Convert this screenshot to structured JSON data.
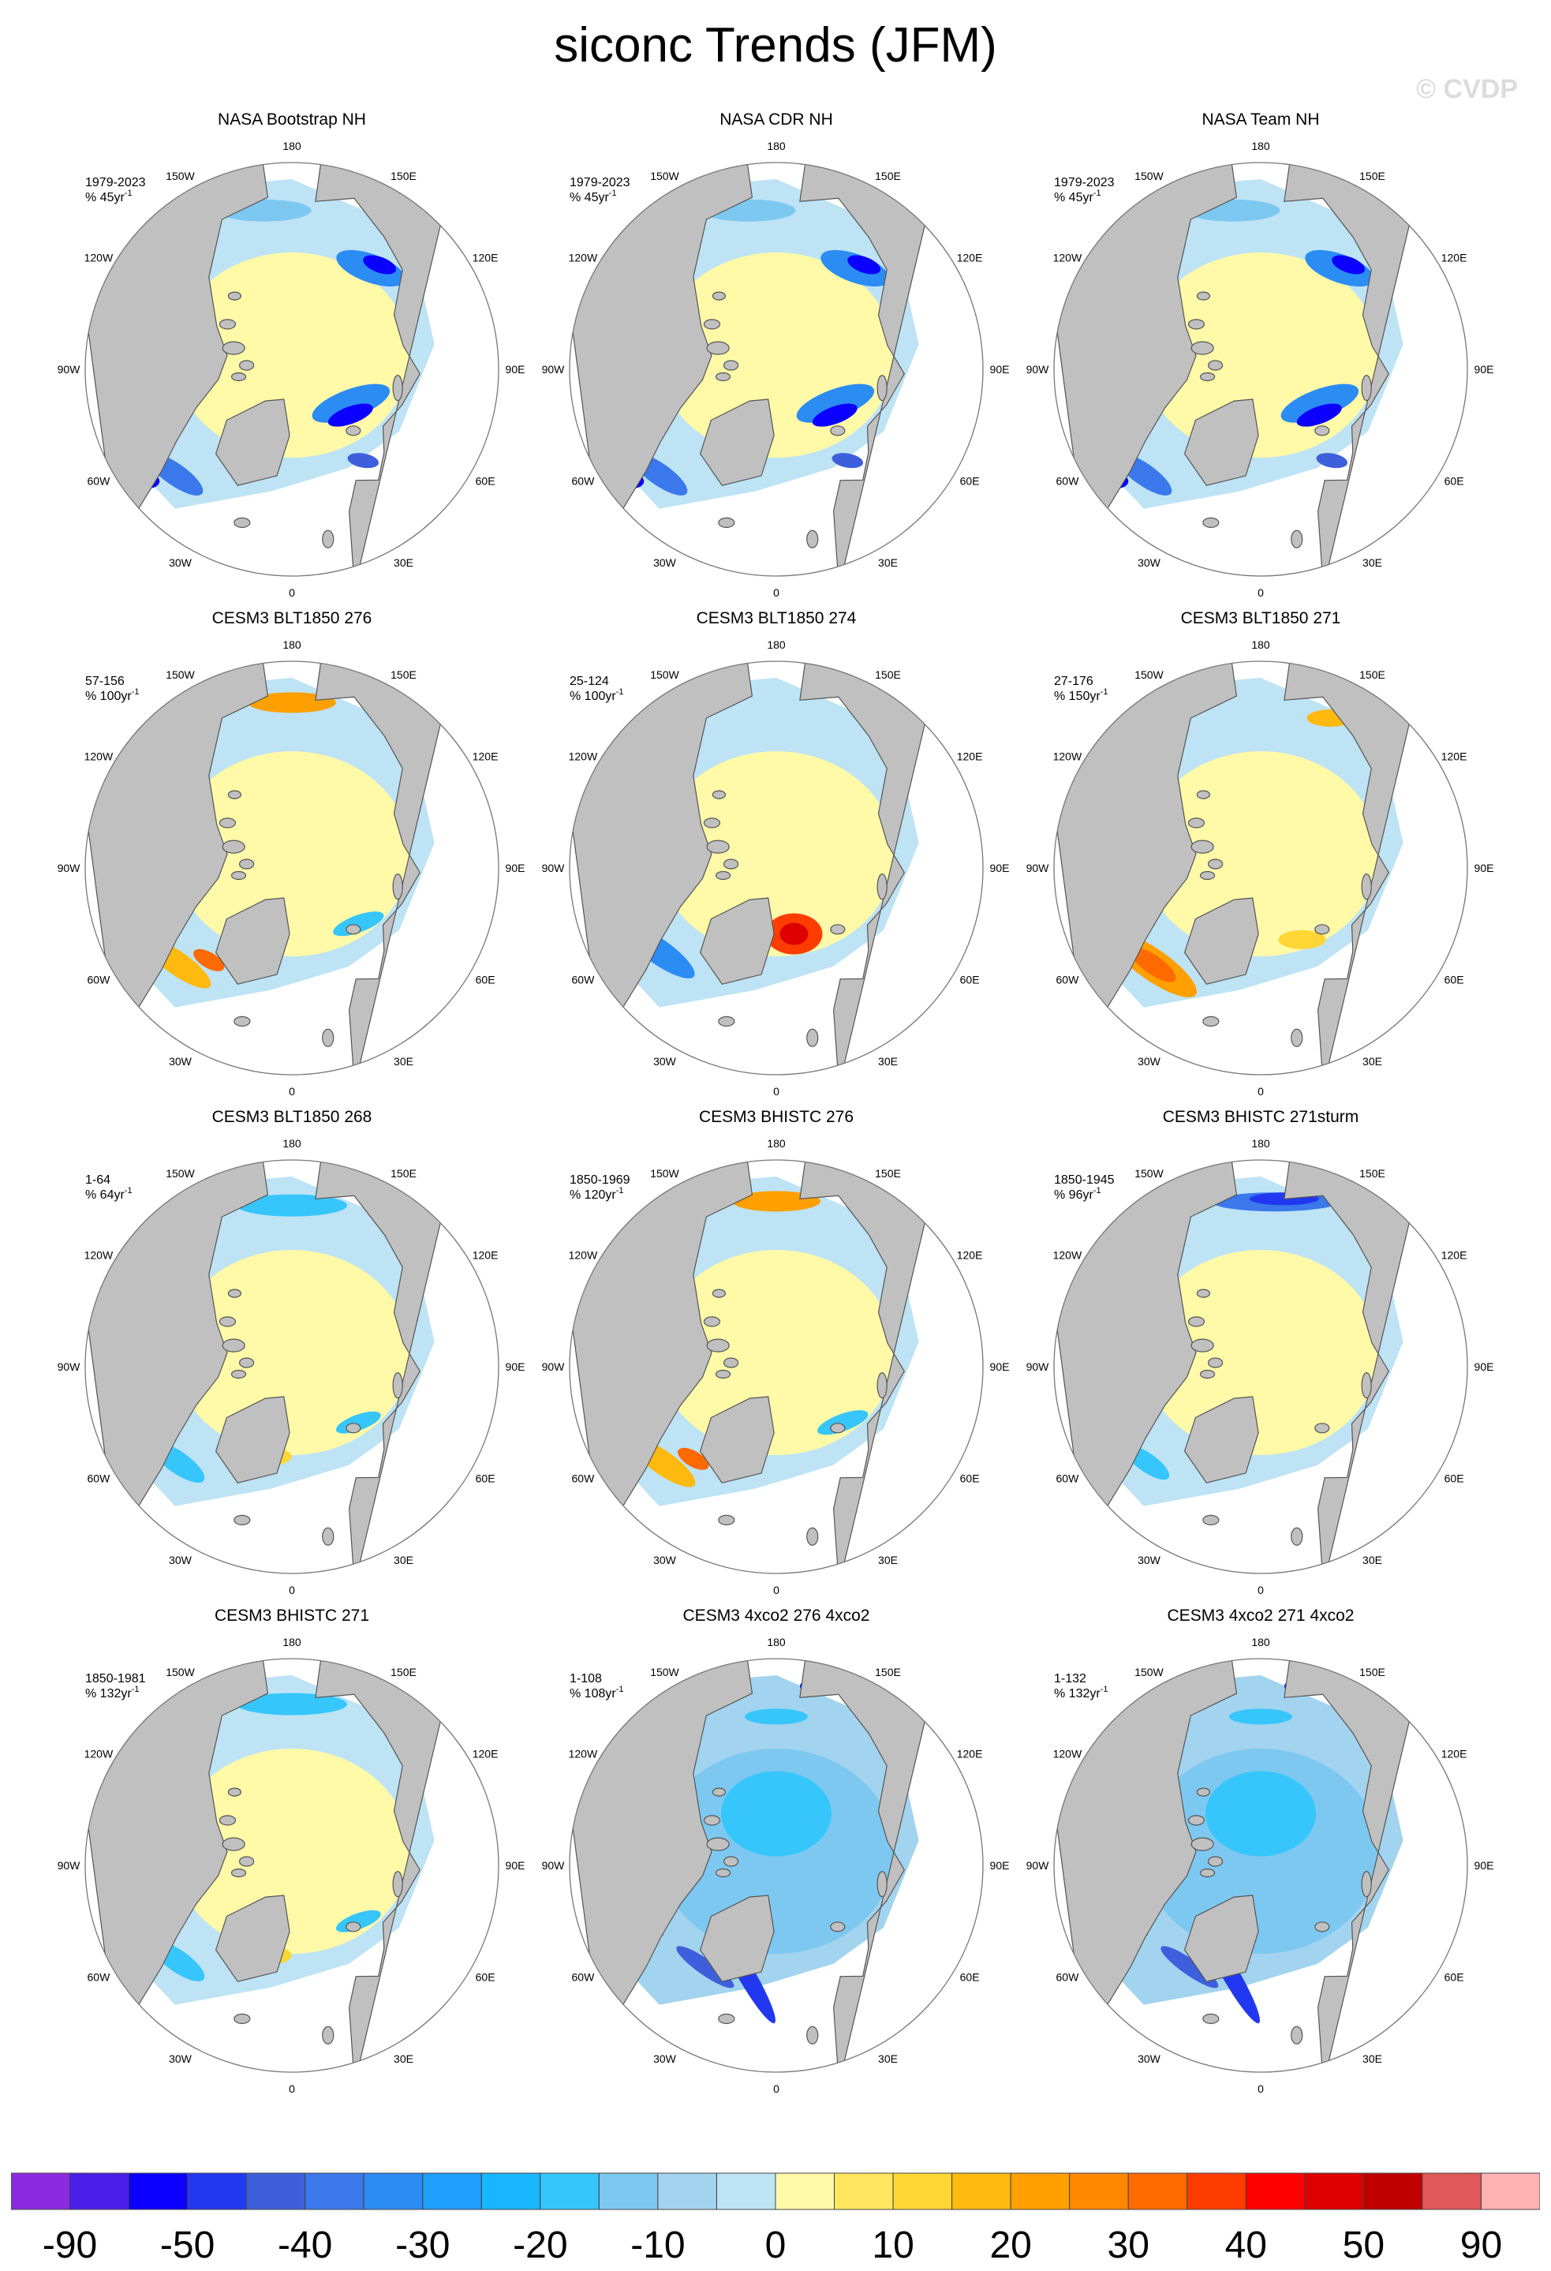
{
  "title": "siconc Trends (JFM)",
  "watermark": "© CVDP",
  "colors": {
    "land": "#c0c0c0",
    "ocean": "#ffffff",
    "coast": "#555555"
  },
  "lon_labels": [
    "180",
    "150E",
    "120E",
    "90E",
    "60E",
    "30E",
    "0",
    "30W",
    "60W",
    "90W",
    "120W",
    "150W"
  ],
  "panels": [
    {
      "title": "NASA Bootstrap NH",
      "period": "1979-2023",
      "trend": "% 45yr",
      "pattern": "obs"
    },
    {
      "title": "NASA CDR NH",
      "period": "1979-2023",
      "trend": "% 45yr",
      "pattern": "obs"
    },
    {
      "title": "NASA Team NH",
      "period": "1979-2023",
      "trend": "% 45yr",
      "pattern": "obs"
    },
    {
      "title": "CESM3 BLT1850 276",
      "period": "57-156",
      "trend": "% 100yr",
      "pattern": "mixed_warm"
    },
    {
      "title": "CESM3 BLT1850 274",
      "period": "25-124",
      "trend": "% 100yr",
      "pattern": "dipole"
    },
    {
      "title": "CESM3 BLT1850 271",
      "period": "27-176",
      "trend": "% 150yr",
      "pattern": "warm"
    },
    {
      "title": "CESM3 BLT1850 268",
      "period": "1-64",
      "trend": "% 64yr",
      "pattern": "mixed"
    },
    {
      "title": "CESM3 BHISTC 276",
      "period": "1850-1969",
      "trend": "% 120yr",
      "pattern": "mixed_warm"
    },
    {
      "title": "CESM3 BHISTC 271sturm",
      "period": "1850-1945",
      "trend": "% 96yr",
      "pattern": "mixed_cool"
    },
    {
      "title": "CESM3 BHISTC 271",
      "period": "1850-1981",
      "trend": "% 132yr",
      "pattern": "mixed"
    },
    {
      "title": "CESM3 4xco2 276 4xco2",
      "period": "1-108",
      "trend": "% 108yr",
      "pattern": "strong_loss"
    },
    {
      "title": "CESM3 4xco2 271 4xco2",
      "period": "1-132",
      "trend": "% 132yr",
      "pattern": "strong_loss"
    }
  ],
  "colorbar": {
    "colors": [
      "#8a2be2",
      "#4b1fe8",
      "#0b00ff",
      "#2238f0",
      "#3e5fdc",
      "#3a78ec",
      "#2b8cf4",
      "#1e9eff",
      "#18b6fe",
      "#36c6fc",
      "#7dc8f0",
      "#a2d3ef",
      "#bde3f5",
      "#fff9a8",
      "#ffe65e",
      "#ffd633",
      "#ffb90f",
      "#ffa000",
      "#ff8800",
      "#ff6a00",
      "#ff3c00",
      "#ff0000",
      "#de0000",
      "#c00000",
      "#e05858",
      "#ffb2b2"
    ],
    "labels": [
      "-90",
      "-50",
      "-40",
      "-30",
      "-20",
      "-10",
      "0",
      "10",
      "20",
      "30",
      "40",
      "50",
      "90"
    ],
    "label_boundaries": [
      1,
      3,
      5,
      7,
      9,
      11,
      13,
      15,
      17,
      19,
      21,
      23,
      25
    ]
  }
}
